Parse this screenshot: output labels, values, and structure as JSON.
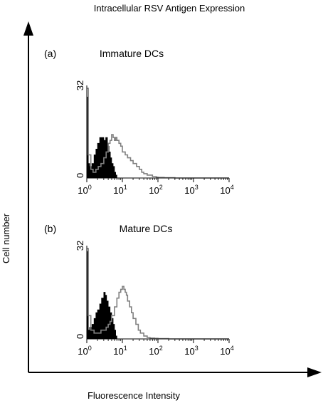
{
  "title": "Intracellular RSV Antigen Expression",
  "ylabel": "Cell number",
  "xlabel": "Fluorescence Intensity",
  "colors": {
    "control_fill": "#000000",
    "sample_line": "#808080",
    "axis": "#000000"
  },
  "chart_data": [
    {
      "type": "area",
      "panel": "(a)",
      "title": "Immature DCs",
      "x_scale": "log",
      "xlim": [
        1,
        10000
      ],
      "ylim": [
        0,
        32
      ],
      "x_ticks": [
        {
          "base": "10",
          "exp": "0"
        },
        {
          "base": "10",
          "exp": "1"
        },
        {
          "base": "10",
          "exp": "2"
        },
        {
          "base": "10",
          "exp": "3"
        },
        {
          "base": "10",
          "exp": "4"
        }
      ],
      "y_ticks": [
        "0",
        "32"
      ],
      "series": [
        {
          "style": "filled",
          "x": [
            1.0,
            1.1,
            1.2,
            1.4,
            1.6,
            1.8,
            2.0,
            2.3,
            2.6,
            3.0,
            3.4,
            3.8,
            4.2,
            4.6,
            5.0,
            5.5,
            6.0,
            6.5,
            7.0
          ],
          "y": [
            28,
            5,
            4,
            5,
            8,
            10,
            12,
            14,
            14,
            13,
            14,
            11,
            9,
            7,
            5,
            4,
            2,
            1,
            0
          ]
        },
        {
          "style": "line",
          "x": [
            1.0,
            1.1,
            1.3,
            1.5,
            1.8,
            2.1,
            2.5,
            3.0,
            3.5,
            4.0,
            4.5,
            5.0,
            5.5,
            6.0,
            6.5,
            7.0,
            8.0,
            9.0,
            10,
            12,
            14,
            17,
            20,
            25,
            30,
            35,
            40,
            50,
            60,
            70,
            80,
            90,
            100,
            150,
            300,
            1000,
            10000
          ],
          "y": [
            31,
            8,
            3,
            2,
            3,
            4,
            5,
            7,
            9,
            12,
            13,
            15,
            14,
            13,
            14,
            13,
            12,
            11,
            9,
            8,
            7,
            6,
            5,
            4,
            3,
            2,
            1.5,
            1,
            1,
            0.5,
            0.5,
            0.3,
            0.2,
            0.1,
            0,
            0,
            0
          ]
        }
      ]
    },
    {
      "type": "area",
      "panel": "(b)",
      "title": "Mature DCs",
      "x_scale": "log",
      "xlim": [
        1,
        10000
      ],
      "ylim": [
        0,
        32
      ],
      "x_ticks": [
        {
          "base": "10",
          "exp": "0"
        },
        {
          "base": "10",
          "exp": "1"
        },
        {
          "base": "10",
          "exp": "2"
        },
        {
          "base": "10",
          "exp": "3"
        },
        {
          "base": "10",
          "exp": "4"
        }
      ],
      "y_ticks": [
        "0",
        "32"
      ],
      "series": [
        {
          "style": "filled",
          "x": [
            1.0,
            1.1,
            1.2,
            1.4,
            1.6,
            1.8,
            2.0,
            2.3,
            2.6,
            3.0,
            3.3,
            3.6,
            4.0,
            4.5,
            5.0,
            5.5,
            6.0,
            6.5,
            7.0
          ],
          "y": [
            30,
            3,
            4,
            5,
            7,
            9,
            10,
            12,
            14,
            16,
            15,
            13,
            11,
            9,
            7,
            5,
            3,
            1,
            0
          ]
        },
        {
          "style": "line",
          "x": [
            1.0,
            1.1,
            1.3,
            1.6,
            2.0,
            2.5,
            3.0,
            3.5,
            4.0,
            4.5,
            5.0,
            6.0,
            7.0,
            8.0,
            9.0,
            10,
            11,
            12,
            13,
            14,
            16,
            18,
            20,
            24,
            28,
            32,
            40,
            50,
            60,
            80,
            100,
            200,
            1000,
            10000
          ],
          "y": [
            31,
            8,
            3,
            2,
            2,
            3,
            3,
            4,
            5,
            6,
            8,
            11,
            14,
            16,
            17,
            18,
            17,
            16,
            15,
            13,
            11,
            9,
            7,
            5,
            3,
            2,
            1,
            0.5,
            0.3,
            0.2,
            0.1,
            0,
            0,
            0
          ]
        }
      ]
    }
  ]
}
